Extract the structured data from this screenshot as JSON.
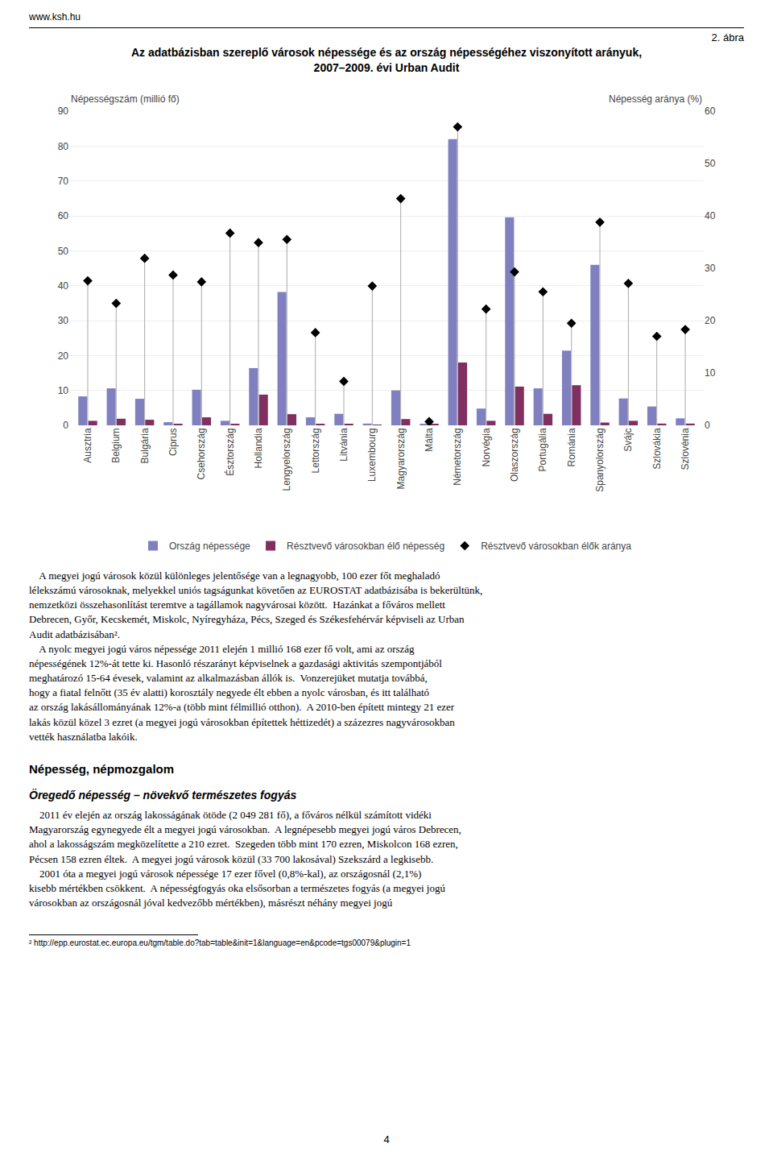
{
  "chart_data": {
    "type": "bar",
    "title": "Az adatbázisban szereplő városok népessége és az ország népességéhez viszonyított arányuk,\n2007–2009. évi Urban Audit",
    "ylabel": "Népességszám (millió fő)",
    "y2label": "Népesség aránya (%)",
    "categories": [
      "Ausztria",
      "Belgium",
      "Bulgária",
      "Ciprus",
      "Csehország",
      "Észtország",
      "Hollandia",
      "Lengyelország",
      "Lettország",
      "Litvánia",
      "Luxembourg",
      "Magyarország",
      "Málta",
      "Németország",
      "Norvégia",
      "Olaszország",
      "Portugália",
      "Románia",
      "Spanyolország",
      "Svájc",
      "Szlovákia",
      "Szlovénia"
    ],
    "series": [
      {
        "name": "Ország népessége",
        "type": "bar",
        "color": "#8080c0",
        "values": [
          8.3,
          10.6,
          7.6,
          0.9,
          10.2,
          1.3,
          16.4,
          38.2,
          2.3,
          3.3,
          0.5,
          10.0,
          0.4,
          82.0,
          4.8,
          59.6,
          10.6,
          21.4,
          46.0,
          7.7,
          5.4,
          2.0
        ]
      },
      {
        "name": "Résztvevő városokban élő népesség",
        "type": "bar",
        "color": "#803060",
        "values": [
          1.3,
          1.9,
          1.6,
          0.3,
          2.3,
          0.4,
          8.8,
          3.2,
          0.4,
          0.3,
          0.1,
          1.8,
          0.4,
          18.0,
          1.3,
          11.1,
          3.3,
          11.5,
          0.8,
          1.3,
          0.5,
          0.5
        ]
      },
      {
        "name": "Résztvevő városokban élők aránya",
        "type": "scatter",
        "marker": "diamond",
        "color": "#000000",
        "axis": "y2",
        "values": [
          27.6,
          23.3,
          31.9,
          28.7,
          27.4,
          36.7,
          34.9,
          35.5,
          17.7,
          8.4,
          26.6,
          43.3,
          0.7,
          57.0,
          22.2,
          29.3,
          25.5,
          19.5,
          38.8,
          27.1,
          17.0,
          18.3
        ]
      }
    ],
    "ylim": [
      0,
      90
    ],
    "yticks": [
      0,
      10,
      20,
      30,
      40,
      50,
      60,
      70,
      80,
      90
    ],
    "y2lim": [
      0,
      60
    ],
    "y2ticks": [
      0,
      10,
      20,
      30,
      40,
      50,
      60
    ],
    "grid": true,
    "legend": "bottom",
    "annotations": [
      "www.ksh.hu",
      "2. ábra",
      "    A megyei jogú városok közül különleges jelentősége van a legnagyobb, 100 ezer főt meghaladó\nlélekszámú városoknak, melyekkel uniós tagságunkat követően az EUROSTAT adatbázisába is bekerültünk,\nnemzetközi összehasonlítást teremtve a tagállamok nagyvárosai között.  Hazánkat a főváros mellett\nDebrecen, Győr, Kecskemét, Miskolc, Nyíregyháza, Pécs, Szeged és Székesfehérvár képviseli az Urban\nAudit adatbázisában².\n    A nyolc megyei jogú város népessége 2011 elején 1 millió 168 ezer fő volt, ami az ország\nnépességének 12%-át tette ki. Hasonló részarányt képviselnek a gazdasági aktivitás szempontjából\nmeghatározó 15-64 évesek, valamint az alkalmazásban állók is.  Vonzerejüket mutatja továbbá,\nhogy a fiatal felnőtt (35 év alatti) korosztály negyede élt ebben a nyolc városban, és itt található\naz ország lakásállományának 12%-a (több mint félmillió otthon).  A 2010-ben épített mintegy 21 ezer\nlakás közül közel 3 ezret (a megyei jogú városokban építettek héttizedét) a százezres nagyvárosokban\nvették használatba lakóik.",
      "Népesség, népmozgalom",
      "Öregedő népesség – növekvő természetes fogyás",
      "    2011 év elején az ország lakosságának ötöde (2 049 281 fő), a főváros nélkül számított vidéki\nMagyarország egynegyede élt a megyei jogú városokban.  A legnépesebb megyei jogú város Debrecen,\nahol a lakosságszám megközelítette a 210 ezret.  Szegeden több mint 170 ezren, Miskolcon 168 ezren,\nPécsen 158 ezren éltek.  A megyei jogú városok közül (33 700 lakosával) Szekszárd a legkisebb.\n    2001 óta a megyei jogú városok népessége 17 ezer fővel (0,8%-kal), az országosnál (2,1%)\nkisebb mértékben csökkent.  A népességfogyás oka elsősorban a természetes fogyás (a megyei jogú\nvárosokban az országosnál jóval kedvezőbb mértékben), másrészt néhány megyei jogú",
      "² http://epp.eurostat.ec.europa.eu/tgm/table.do?tab=table&init=1&language=en&pcode=tgs00079&plugin=1",
      "4"
    ]
  }
}
